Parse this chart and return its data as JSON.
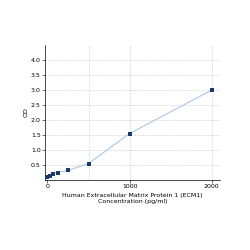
{
  "x": [
    0,
    31.25,
    62.5,
    125,
    250,
    500,
    1000,
    2000
  ],
  "y": [
    0.1,
    0.15,
    0.19,
    0.25,
    0.32,
    0.55,
    1.55,
    3.0
  ],
  "line_color": "#a8c8e8",
  "marker_color": "#1a3a6b",
  "marker_size": 3,
  "xlabel_line1": "Human Extracellular Matrix Protein 1 (ECM1)",
  "xlabel_line2": "Concentration (pg/ml)",
  "ylabel": "OD",
  "xlim": [
    -30,
    2100
  ],
  "ylim": [
    0,
    4.5
  ],
  "yticks": [
    0.5,
    1.0,
    1.5,
    2.0,
    2.5,
    3.0,
    3.5,
    4.0
  ],
  "xtick_positions": [
    0,
    1000,
    2000
  ],
  "xtick_labels": [
    "0",
    "1000",
    "2000"
  ],
  "vline_positions": [
    500,
    1000,
    2000
  ],
  "grid_color": "#cccccc",
  "bg_color": "#ffffff",
  "label_fontsize": 4.5,
  "tick_fontsize": 4.5
}
